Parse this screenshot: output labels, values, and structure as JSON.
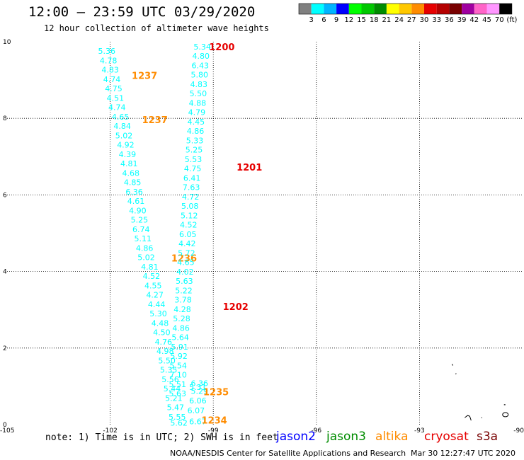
{
  "header": {
    "title": "12:00 – 23:59 UTC 03/29/2020",
    "subtitle": "12 hour collection of altimeter wave heights"
  },
  "color_scale": {
    "colors": [
      "#808080",
      "#00ffff",
      "#00b4ff",
      "#0000ff",
      "#00ff00",
      "#00c800",
      "#008c00",
      "#ffff00",
      "#ffc800",
      "#ff8c00",
      "#e60000",
      "#b40000",
      "#780000",
      "#a000a0",
      "#ff64c8",
      "#ff96ff",
      "#000000"
    ],
    "labels": [
      "3",
      "6",
      "9",
      "12",
      "15",
      "18",
      "21",
      "24",
      "27",
      "30",
      "33",
      "36",
      "39",
      "42",
      "45",
      "70",
      "(ft)"
    ]
  },
  "chart_data": {
    "type": "scatter",
    "title": "12:00 – 23:59 UTC 03/29/2020",
    "subtitle": "12 hour collection of altimeter wave heights",
    "xlim": [
      -105,
      -90
    ],
    "ylim": [
      0,
      10
    ],
    "grid": true,
    "x_ticks": [
      "-105",
      "-102",
      "-99",
      "-96",
      "-93",
      "-90"
    ],
    "y_ticks": [
      "0",
      "2",
      "4",
      "6",
      "8",
      "10"
    ],
    "value_color": "#00ffff",
    "series": [
      {
        "name": "altika",
        "color": "#ff8c00",
        "time_labels": [
          {
            "text": "1237",
            "x": -101.0,
            "y": 9.12
          },
          {
            "text": "1237",
            "x": -100.7,
            "y": 7.97
          },
          {
            "text": "1236",
            "x": -99.85,
            "y": 4.35
          },
          {
            "text": "1235",
            "x": -98.92,
            "y": 0.86
          },
          {
            "text": "1234",
            "x": -98.97,
            "y": 0.12
          }
        ],
        "points": [
          {
            "x": -102.1,
            "y": 9.76,
            "v": "5.36"
          },
          {
            "x": -102.05,
            "y": 9.51,
            "v": "4.78"
          },
          {
            "x": -102.0,
            "y": 9.27,
            "v": "4.83"
          },
          {
            "x": -101.95,
            "y": 9.02,
            "v": "4.74"
          },
          {
            "x": -101.9,
            "y": 8.78,
            "v": "4.75"
          },
          {
            "x": -101.85,
            "y": 8.53,
            "v": "4.51"
          },
          {
            "x": -101.8,
            "y": 8.29,
            "v": "4.74"
          },
          {
            "x": -101.7,
            "y": 8.04,
            "v": "4.65"
          },
          {
            "x": -101.65,
            "y": 7.8,
            "v": "4.84"
          },
          {
            "x": -101.6,
            "y": 7.55,
            "v": "5.02"
          },
          {
            "x": -101.55,
            "y": 7.31,
            "v": "4.92"
          },
          {
            "x": -101.5,
            "y": 7.06,
            "v": "4.39"
          },
          {
            "x": -101.45,
            "y": 6.82,
            "v": "4.81"
          },
          {
            "x": -101.4,
            "y": 6.57,
            "v": "4.68"
          },
          {
            "x": -101.35,
            "y": 6.33,
            "v": "4.85"
          },
          {
            "x": -101.3,
            "y": 6.08,
            "v": "6.36"
          },
          {
            "x": -101.25,
            "y": 5.84,
            "v": "4.61"
          },
          {
            "x": -101.2,
            "y": 5.59,
            "v": "4.90"
          },
          {
            "x": -101.15,
            "y": 5.35,
            "v": "5.25"
          },
          {
            "x": -101.1,
            "y": 5.1,
            "v": "6.74"
          },
          {
            "x": -101.05,
            "y": 4.86,
            "v": "5.11"
          },
          {
            "x": -101.0,
            "y": 4.61,
            "v": "4.86"
          },
          {
            "x": -100.95,
            "y": 4.37,
            "v": "5.02"
          },
          {
            "x": -100.85,
            "y": 4.12,
            "v": "4.81"
          },
          {
            "x": -100.8,
            "y": 3.88,
            "v": "4.52"
          },
          {
            "x": -100.75,
            "y": 3.63,
            "v": "4.55"
          },
          {
            "x": -100.7,
            "y": 3.39,
            "v": "4.27"
          },
          {
            "x": -100.65,
            "y": 3.14,
            "v": "4.44"
          },
          {
            "x": -100.6,
            "y": 2.9,
            "v": "5.30"
          },
          {
            "x": -100.55,
            "y": 2.65,
            "v": "4.48"
          },
          {
            "x": -100.5,
            "y": 2.41,
            "v": "4.50"
          },
          {
            "x": -100.45,
            "y": 2.16,
            "v": "4.76"
          },
          {
            "x": -100.4,
            "y": 1.92,
            "v": "4.98"
          },
          {
            "x": -100.35,
            "y": 1.67,
            "v": "5.50"
          },
          {
            "x": -100.3,
            "y": 1.43,
            "v": "5.35"
          },
          {
            "x": -100.25,
            "y": 1.18,
            "v": "5.56"
          },
          {
            "x": -100.2,
            "y": 0.94,
            "v": "5.44"
          },
          {
            "x": -100.15,
            "y": 0.69,
            "v": "5.21"
          },
          {
            "x": -100.1,
            "y": 0.45,
            "v": "5.47"
          },
          {
            "x": -100.05,
            "y": 0.2,
            "v": "5.55"
          },
          {
            "x": -100.0,
            "y": 0.05,
            "v": "5.62"
          },
          {
            "x": -99.4,
            "y": 0.88,
            "v": "5.29"
          },
          {
            "x": -99.45,
            "y": 0.63,
            "v": "6.06"
          },
          {
            "x": -99.5,
            "y": 0.37,
            "v": "6.07"
          },
          {
            "x": -99.45,
            "y": 0.08,
            "v": "6.67"
          }
        ]
      },
      {
        "name": "cryosat",
        "color": "#e60000",
        "time_labels": [
          {
            "text": "1200",
            "x": -98.75,
            "y": 9.87
          },
          {
            "text": "1201",
            "x": -97.95,
            "y": 6.73
          },
          {
            "text": "1202",
            "x": -98.35,
            "y": 3.09
          }
        ],
        "points": [
          {
            "x": -99.32,
            "y": 9.87,
            "v": "5.34"
          },
          {
            "x": -99.36,
            "y": 9.63,
            "v": "4.80"
          },
          {
            "x": -99.38,
            "y": 9.38,
            "v": "6.43"
          },
          {
            "x": -99.4,
            "y": 9.14,
            "v": "5.80"
          },
          {
            "x": -99.42,
            "y": 8.89,
            "v": "4.83"
          },
          {
            "x": -99.44,
            "y": 8.65,
            "v": "5.50"
          },
          {
            "x": -99.46,
            "y": 8.4,
            "v": "4.88"
          },
          {
            "x": -99.48,
            "y": 8.16,
            "v": "4.79"
          },
          {
            "x": -99.5,
            "y": 7.91,
            "v": "4.45"
          },
          {
            "x": -99.52,
            "y": 7.67,
            "v": "4.86"
          },
          {
            "x": -99.54,
            "y": 7.42,
            "v": "5.33"
          },
          {
            "x": -99.56,
            "y": 7.18,
            "v": "5.25"
          },
          {
            "x": -99.58,
            "y": 6.93,
            "v": "5.53"
          },
          {
            "x": -99.6,
            "y": 6.69,
            "v": "4.75"
          },
          {
            "x": -99.62,
            "y": 6.44,
            "v": "6.41"
          },
          {
            "x": -99.64,
            "y": 6.2,
            "v": "7.63"
          },
          {
            "x": -99.66,
            "y": 5.95,
            "v": "4.72"
          },
          {
            "x": -99.68,
            "y": 5.71,
            "v": "5.08"
          },
          {
            "x": -99.7,
            "y": 5.46,
            "v": "5.12"
          },
          {
            "x": -99.72,
            "y": 5.22,
            "v": "4.52"
          },
          {
            "x": -99.74,
            "y": 4.97,
            "v": "6.05"
          },
          {
            "x": -99.76,
            "y": 4.73,
            "v": "4.42"
          },
          {
            "x": -99.78,
            "y": 4.48,
            "v": "5.72"
          },
          {
            "x": -99.8,
            "y": 4.24,
            "v": "4.65"
          },
          {
            "x": -99.82,
            "y": 3.99,
            "v": "4.02"
          },
          {
            "x": -99.84,
            "y": 3.75,
            "v": "5.63"
          },
          {
            "x": -99.86,
            "y": 3.5,
            "v": "5.22"
          },
          {
            "x": -99.88,
            "y": 3.26,
            "v": "3.78"
          },
          {
            "x": -99.9,
            "y": 3.01,
            "v": "4.28"
          },
          {
            "x": -99.92,
            "y": 2.77,
            "v": "5.28"
          },
          {
            "x": -99.94,
            "y": 2.52,
            "v": "4.86"
          },
          {
            "x": -99.96,
            "y": 2.28,
            "v": "5.64"
          },
          {
            "x": -99.98,
            "y": 2.03,
            "v": "5.91"
          },
          {
            "x": -100.0,
            "y": 1.79,
            "v": "5.92"
          },
          {
            "x": -100.02,
            "y": 1.54,
            "v": "5.54"
          },
          {
            "x": -100.02,
            "y": 1.3,
            "v": "7.10"
          },
          {
            "x": -100.04,
            "y": 1.05,
            "v": "5.51"
          },
          {
            "x": -100.04,
            "y": 0.81,
            "v": "5.63"
          },
          {
            "x": -99.4,
            "y": 1.08,
            "v": "6.36"
          },
          {
            "x": -99.45,
            "y": 0.98,
            "v": "5.31"
          }
        ]
      }
    ],
    "land": [
      {
        "x": -92.05,
        "y": 1.58
      },
      {
        "x": -91.95,
        "y": 1.32
      },
      {
        "x": -91.6,
        "y": 0.22
      },
      {
        "x": -91.2,
        "y": 0.18
      },
      {
        "x": -90.5,
        "y": 0.26
      },
      {
        "x": -90.5,
        "y": 0.52
      }
    ]
  },
  "footer": {
    "note": "note: 1) Time is in UTC; 2) SWH is in feet",
    "missions": [
      {
        "label": "jason2",
        "color": "#0000ff"
      },
      {
        "label": "jason3",
        "color": "#008c00"
      },
      {
        "label": "altika",
        "color": "#ff8c00"
      },
      {
        "label": "cryosat",
        "color": "#e60000"
      },
      {
        "label": "s3a",
        "color": "#780000"
      }
    ],
    "credit": "NOAA/NESDIS Center for Satellite Applications and Research",
    "timestamp": "Mar 30 12:27:47 UTC 2020"
  }
}
